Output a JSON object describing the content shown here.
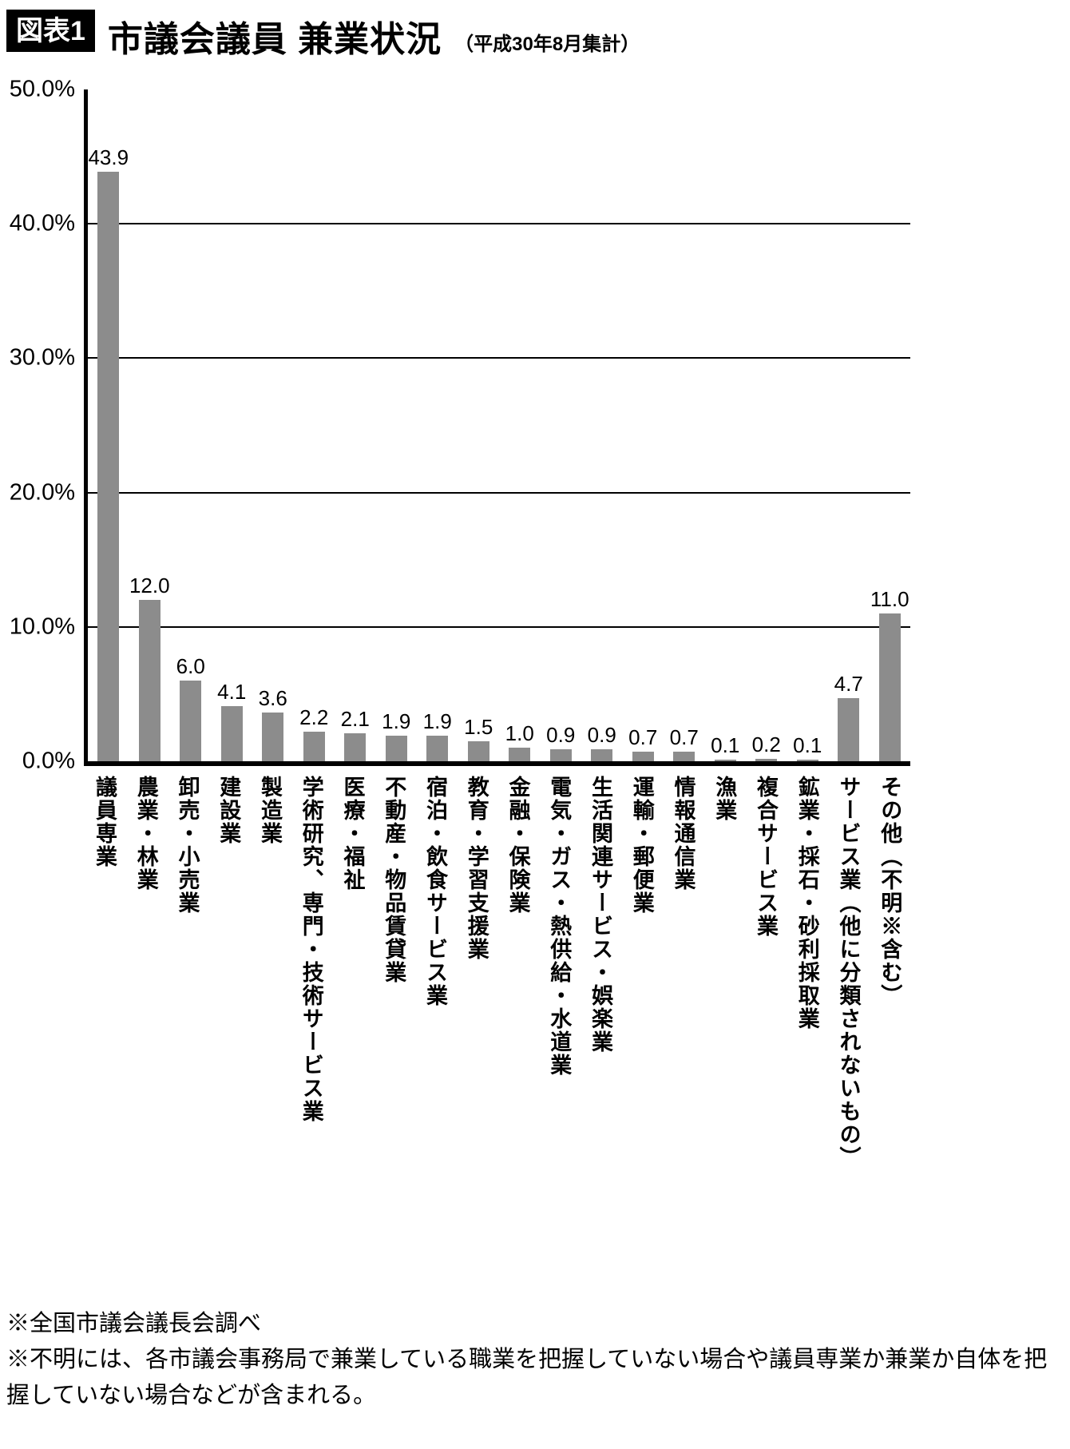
{
  "header": {
    "badge": "図表1",
    "title": "市議会議員 兼業状況",
    "subtitle": "（平成30年8月集計）"
  },
  "chart_data": {
    "type": "bar",
    "title": "市議会議員 兼業状況（平成30年8月集計）",
    "categories": [
      "議員専業",
      "農業・林業",
      "卸売・小売業",
      "建設業",
      "製造業",
      "学術研究、専門・技術サービス業",
      "医療・福祉",
      "不動産・物品賃貸業",
      "宿泊・飲食サービス業",
      "教育・学習支援業",
      "金融・保険業",
      "電気・ガス・熱供給・水道業",
      "生活関連サービス・娯楽業",
      "運輸・郵便業",
      "情報通信業",
      "漁業",
      "複合サービス業",
      "鉱業・採石・砂利採取業",
      "サービス業（他に分類されないもの）",
      "その他（不明※含む）"
    ],
    "values": [
      43.9,
      12.0,
      6.0,
      4.1,
      3.6,
      2.2,
      2.1,
      1.9,
      1.9,
      1.5,
      1.0,
      0.9,
      0.9,
      0.7,
      0.7,
      0.1,
      0.2,
      0.1,
      4.7,
      11.0
    ],
    "value_labels": [
      "43.9",
      "12.0",
      "6.0",
      "4.1",
      "3.6",
      "2.2",
      "2.1",
      "1.9",
      "1.9",
      "1.5",
      "1.0",
      "0.9",
      "0.9",
      "0.7",
      "0.7",
      "0.1",
      "0.2",
      "0.1",
      "4.7",
      "11.0"
    ],
    "xlabel": "",
    "ylabel": "",
    "ylim": [
      0,
      50
    ],
    "yticks": [
      {
        "label": "50.0%",
        "value": 50
      },
      {
        "label": "40.0%",
        "value": 40
      },
      {
        "label": "30.0%",
        "value": 30
      },
      {
        "label": "20.0%",
        "value": 20
      },
      {
        "label": "10.0%",
        "value": 10
      },
      {
        "label": "0.0%",
        "value": 0
      }
    ],
    "gridlines": [
      10,
      20,
      30,
      40
    ],
    "grid": true,
    "legend": false,
    "bar_color": "#8c8c8c"
  },
  "footnotes": [
    "※全国市議会議長会調べ",
    "※不明には、各市議会事務局で兼業している職業を把握していない場合や議員専業か兼業か自体を把握していない場合などが含まれる。"
  ]
}
